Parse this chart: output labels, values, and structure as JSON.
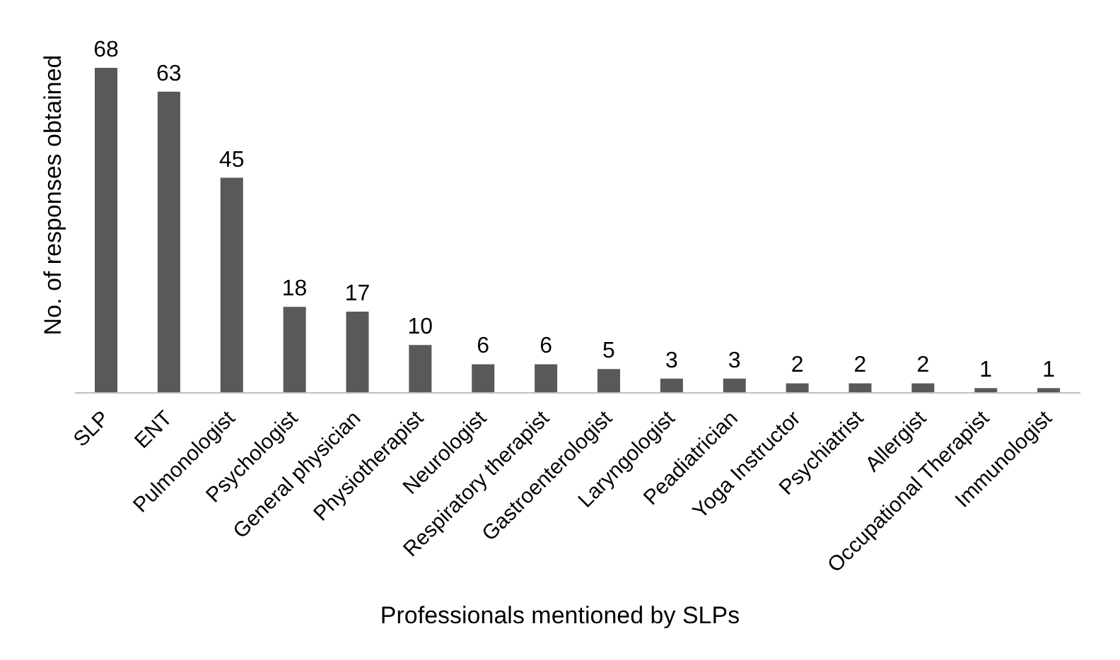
{
  "chart_data": {
    "type": "bar",
    "xlabel": "Professionals mentioned by SLPs",
    "ylabel": "No. of responses obtained",
    "categories": [
      "SLP",
      "ENT",
      "Pulmonologist",
      "Psychologist",
      "General physician",
      "Physiotherapist",
      "Neurologist",
      "Respiratory therapist",
      "Gastroenterologist",
      "Laryngologist",
      "Peadiatrician",
      "Yoga Instructor",
      "Psychiatrist",
      "Allergist",
      "Occupational Therapist",
      "Immunologist"
    ],
    "values": [
      68,
      63,
      45,
      18,
      17,
      10,
      6,
      6,
      5,
      3,
      3,
      2,
      2,
      2,
      1,
      1
    ],
    "color": "#595959",
    "data_labels": true
  }
}
